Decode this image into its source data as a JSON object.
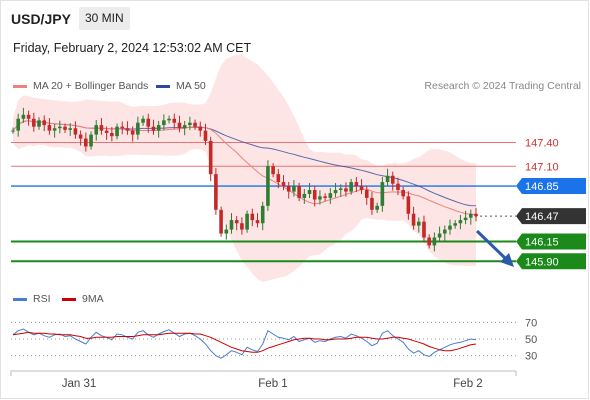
{
  "header": {
    "symbol": "USD/JPY",
    "timeframe": "30 MIN"
  },
  "datetime": "Friday, February 2, 2024 12:53:02 AM CET",
  "legend": {
    "ma20_label": "MA 20 + Bollinger Bands",
    "ma50_label": "MA 50",
    "credit": "Research © 2024 Trading Central",
    "rsi_label": "RSI",
    "ma9_label": "9MA"
  },
  "colors": {
    "ma20": "#f08080",
    "ma50": "#2e4a9e",
    "bollinger_fill": "#fde0e0",
    "up_candle": "#2e7d32",
    "down_candle": "#c62828",
    "resistance": "#e57373",
    "pivot": "#1a73e8",
    "support": "#1b8a1b",
    "current": "#333333",
    "rsi": "#4a7bd0",
    "rsi_ma": "#cc0000",
    "arrow": "#2b5aa8"
  },
  "chart_data": {
    "type": "candlestick",
    "price_levels": [
      {
        "label": "147.40",
        "value": 147.4,
        "kind": "resistance"
      },
      {
        "label": "147.10",
        "value": 147.1,
        "kind": "resistance"
      },
      {
        "label": "146.85",
        "value": 146.85,
        "kind": "pivot"
      },
      {
        "label": "146.47",
        "value": 146.47,
        "kind": "current"
      },
      {
        "label": "146.15",
        "value": 146.15,
        "kind": "support"
      },
      {
        "label": "145.90",
        "value": 145.9,
        "kind": "support"
      }
    ],
    "x_ticks": [
      "Jan 31",
      "Feb 1",
      "Feb 2"
    ],
    "closes": [
      147.55,
      147.7,
      147.75,
      147.7,
      147.6,
      147.68,
      147.62,
      147.55,
      147.58,
      147.6,
      147.56,
      147.58,
      147.5,
      147.45,
      147.35,
      147.5,
      147.62,
      147.55,
      147.52,
      147.48,
      147.6,
      147.58,
      147.55,
      147.5,
      147.65,
      147.7,
      147.6,
      147.55,
      147.62,
      147.68,
      147.7,
      147.65,
      147.58,
      147.62,
      147.65,
      147.6,
      147.55,
      147.42,
      147.0,
      146.55,
      146.25,
      146.3,
      146.42,
      146.38,
      146.3,
      146.5,
      146.42,
      146.38,
      146.6,
      147.1,
      147.0,
      146.9,
      146.85,
      146.78,
      146.85,
      146.7,
      146.75,
      146.8,
      146.68,
      146.72,
      146.7,
      146.76,
      146.8,
      146.82,
      146.78,
      146.9,
      146.85,
      146.8,
      146.7,
      146.55,
      146.6,
      146.9,
      146.98,
      146.88,
      146.8,
      146.72,
      146.5,
      146.35,
      146.4,
      146.2,
      146.1,
      146.2,
      146.25,
      146.3,
      146.35,
      146.38,
      146.42,
      146.45,
      146.5,
      146.47
    ],
    "price_axis_range": [
      145.6,
      148.0
    ],
    "rsi": {
      "levels": [
        70,
        50,
        30
      ],
      "values": [
        55,
        60,
        62,
        58,
        55,
        57,
        54,
        52,
        55,
        56,
        53,
        54,
        50,
        47,
        44,
        52,
        58,
        54,
        52,
        49,
        56,
        55,
        52,
        50,
        58,
        60,
        55,
        52,
        56,
        59,
        61,
        57,
        53,
        56,
        57,
        54,
        50,
        44,
        36,
        30,
        27,
        31,
        36,
        34,
        31,
        40,
        37,
        35,
        44,
        60,
        56,
        52,
        51,
        49,
        53,
        47,
        49,
        51,
        46,
        48,
        47,
        50,
        52,
        53,
        51,
        56,
        54,
        51,
        47,
        42,
        45,
        57,
        60,
        54,
        50,
        46,
        38,
        33,
        36,
        31,
        29,
        34,
        37,
        40,
        43,
        45,
        46,
        48,
        50,
        49
      ],
      "ma9_values": [
        55,
        56,
        57,
        58,
        57,
        57,
        57,
        56,
        56,
        55,
        55,
        55,
        54,
        53,
        51,
        51,
        52,
        52,
        52,
        52,
        53,
        53,
        53,
        53,
        54,
        55,
        55,
        55,
        55,
        56,
        57,
        57,
        57,
        57,
        57,
        56,
        56,
        54,
        52,
        49,
        46,
        43,
        40,
        38,
        36,
        35,
        34,
        34,
        36,
        39,
        41,
        43,
        45,
        47,
        49,
        50,
        51,
        51,
        50,
        50,
        49,
        49,
        50,
        50,
        50,
        51,
        52,
        52,
        52,
        51,
        50,
        50,
        51,
        52,
        52,
        51,
        50,
        48,
        46,
        44,
        41,
        39,
        37,
        36,
        36,
        37,
        39,
        41,
        43,
        44
      ]
    }
  }
}
